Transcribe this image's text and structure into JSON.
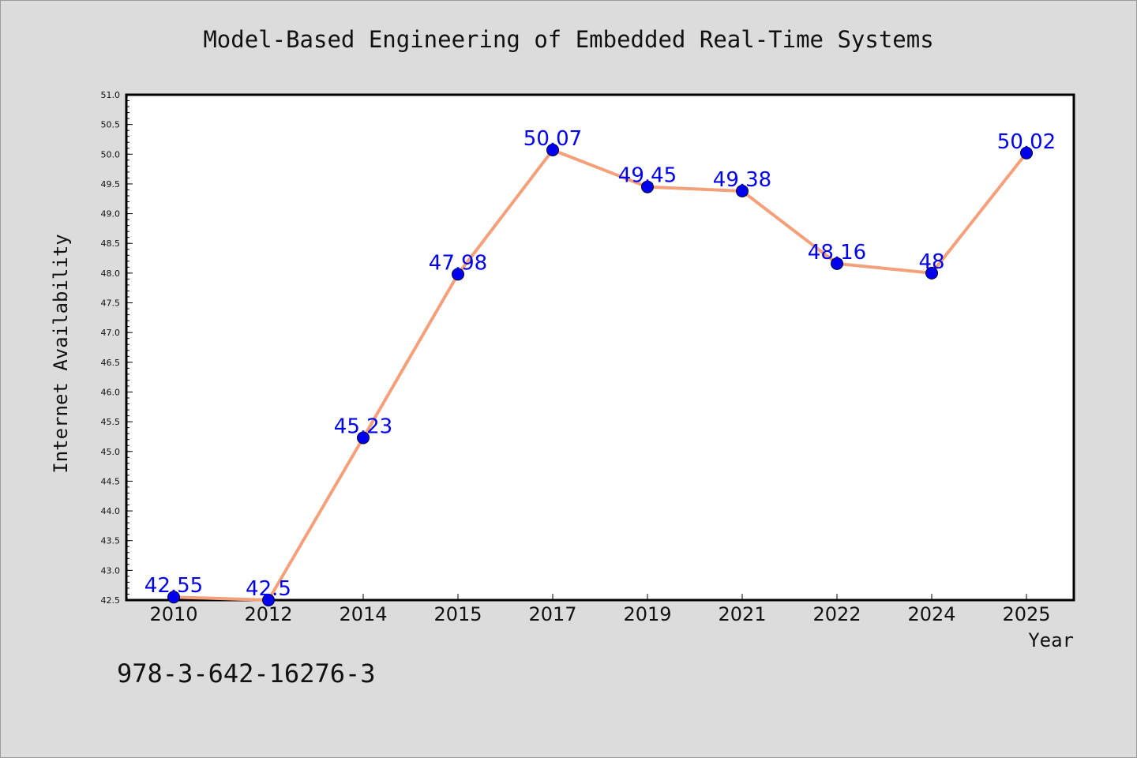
{
  "title": "Model-Based Engineering of Embedded Real-Time Systems",
  "footer_text": "978-3-642-16276-3",
  "chart_data": {
    "type": "line",
    "title": "Model-Based Engineering of Embedded Real-Time Systems",
    "xlabel": "Year",
    "ylabel": "Internet Availability",
    "categories": [
      "2010",
      "2012",
      "2014",
      "2015",
      "2017",
      "2019",
      "2021",
      "2022",
      "2024",
      "2025"
    ],
    "series": [
      {
        "values": [
          42.55,
          42.5,
          45.23,
          47.98,
          50.07,
          49.45,
          49.38,
          48.16,
          48,
          50.02
        ],
        "labels": [
          "42.55",
          "42.5",
          "45.23",
          "47.98",
          "50.07",
          "49.45",
          "49.38",
          "48.16",
          "48",
          "50.02"
        ]
      }
    ],
    "ylim": [
      42.5,
      51.0
    ],
    "yticks": [
      "42.5",
      "43.0",
      "43.5",
      "44.0",
      "44.5",
      "45.0",
      "45.5",
      "46.0",
      "46.5",
      "47.0",
      "47.5",
      "48.0",
      "48.5",
      "49.0",
      "49.5",
      "50.0",
      "50.5",
      "51.0"
    ],
    "grid": false,
    "legend": "none",
    "colors": {
      "line": "#f4a07a",
      "marker": "#0000ee",
      "labels": "#0000ee",
      "background": "#dcdcdc",
      "plot_area": "#ffffff"
    }
  }
}
